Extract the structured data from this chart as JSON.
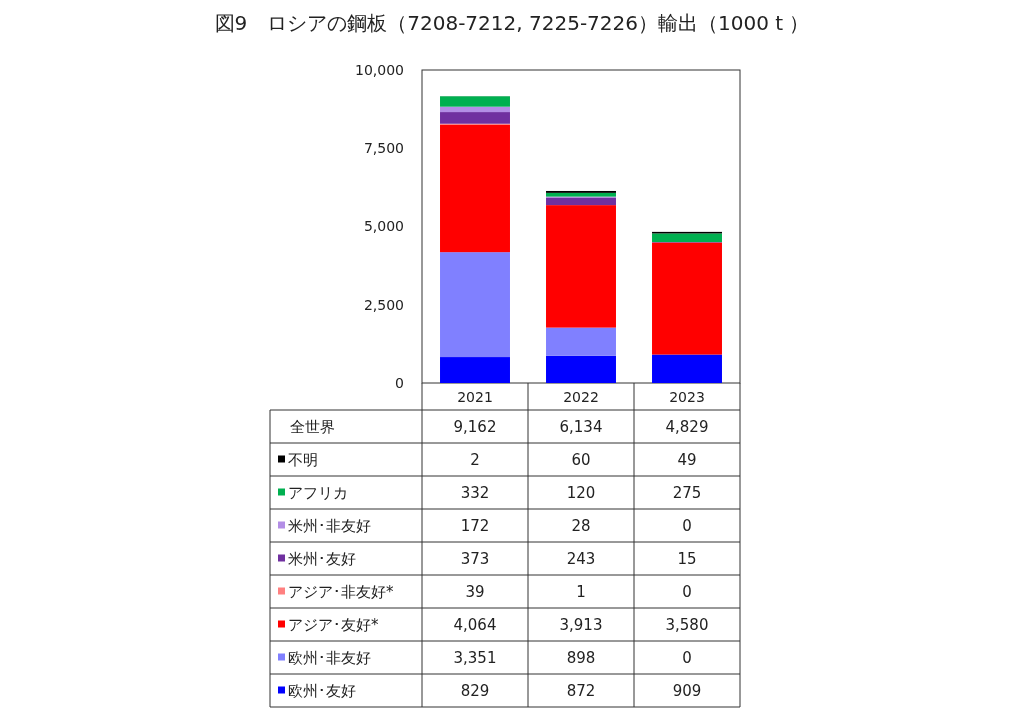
{
  "chart_data": {
    "type": "bar",
    "title": "図9　ロシアの鋼板（7208-7212, 7225-7226）輸出（1000 t ）",
    "categories": [
      "2021",
      "2022",
      "2023"
    ],
    "stacked": true,
    "ylim": [
      0,
      10000
    ],
    "yticks": [
      {
        "value": 0,
        "label": "0"
      },
      {
        "value": 2500,
        "label": "2,500"
      },
      {
        "value": 5000,
        "label": "5,000"
      },
      {
        "value": 7500,
        "label": "7,500"
      },
      {
        "value": 10000,
        "label": "10,000"
      }
    ],
    "grid": false,
    "legend": "bottom",
    "annotations": [
      "全世界"
    ],
    "totals": [
      "9,162",
      "6,134",
      "4,829"
    ],
    "series": [
      {
        "name": "欧州･友好",
        "color": "#0000ff",
        "values": [
          829,
          872,
          909
        ],
        "value_labels": [
          "829",
          "872",
          "909"
        ]
      },
      {
        "name": "欧州･非友好",
        "color": "#8080ff",
        "values": [
          3351,
          898,
          0
        ],
        "value_labels": [
          "3,351",
          "898",
          "0"
        ]
      },
      {
        "name": "アジア･友好*",
        "color": "#ff0000",
        "values": [
          4064,
          3913,
          3580
        ],
        "value_labels": [
          "4,064",
          "3,913",
          "3,580"
        ]
      },
      {
        "name": "アジア･非友好*",
        "color": "#ff8080",
        "values": [
          39,
          1,
          0
        ],
        "value_labels": [
          "39",
          "1",
          "0"
        ]
      },
      {
        "name": "米州･友好",
        "color": "#7030a0",
        "values": [
          373,
          243,
          15
        ],
        "value_labels": [
          "373",
          "243",
          "15"
        ]
      },
      {
        "name": "米州･非友好",
        "color": "#b38ee6",
        "values": [
          172,
          28,
          0
        ],
        "value_labels": [
          "172",
          "28",
          "0"
        ]
      },
      {
        "name": "アフリカ",
        "color": "#00b050",
        "values": [
          332,
          120,
          275
        ],
        "value_labels": [
          "332",
          "120",
          "275"
        ]
      },
      {
        "name": "不明",
        "color": "#000000",
        "values": [
          2,
          60,
          49
        ],
        "value_labels": [
          "2",
          "60",
          "49"
        ]
      }
    ]
  }
}
